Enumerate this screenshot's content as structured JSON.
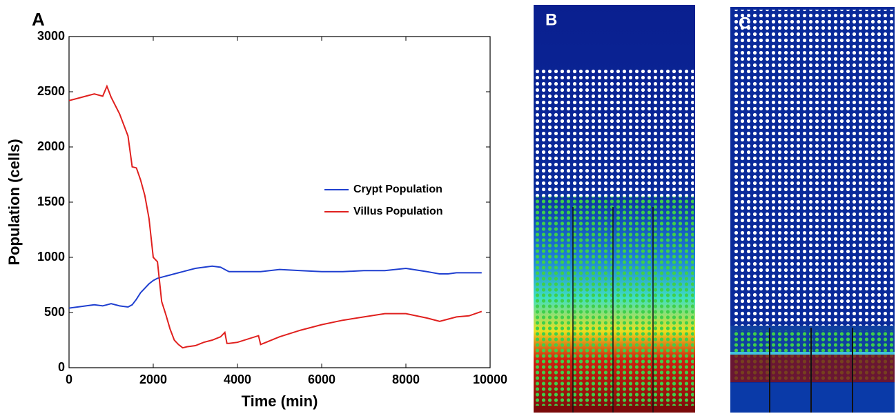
{
  "panel_labels": [
    "A",
    "B",
    "C"
  ],
  "chart_data": {
    "type": "line",
    "xlabel": "Time (min)",
    "ylabel": "Population (cells)",
    "x": [
      0,
      200,
      400,
      600,
      800,
      900,
      1000,
      1200,
      1400,
      1500,
      1600,
      1700,
      1800,
      1900,
      2000,
      2100,
      2200,
      2300,
      2400,
      2500,
      2600,
      2700,
      2800,
      3000,
      3200,
      3400,
      3600,
      3700,
      3750,
      3800,
      4000,
      4500,
      4550,
      5000,
      5500,
      6000,
      6500,
      7000,
      7500,
      8000,
      8500,
      8800,
      9000,
      9200,
      9500,
      9800
    ],
    "series": [
      {
        "name": "Crypt Population",
        "color": "#1f3fd0",
        "values": [
          540,
          550,
          560,
          570,
          560,
          570,
          580,
          560,
          550,
          570,
          620,
          680,
          720,
          760,
          790,
          810,
          820,
          830,
          840,
          850,
          860,
          870,
          880,
          900,
          910,
          920,
          910,
          890,
          880,
          870,
          870,
          870,
          870,
          890,
          880,
          870,
          870,
          880,
          880,
          900,
          870,
          850,
          850,
          860,
          860,
          860
        ]
      },
      {
        "name": "Villus Population",
        "color": "#e0201e",
        "values": [
          2420,
          2440,
          2460,
          2480,
          2460,
          2550,
          2450,
          2300,
          2100,
          1820,
          1810,
          1700,
          1560,
          1350,
          1000,
          960,
          600,
          480,
          350,
          250,
          210,
          180,
          190,
          200,
          230,
          250,
          280,
          320,
          220,
          220,
          230,
          290,
          210,
          280,
          340,
          390,
          430,
          460,
          490,
          490,
          450,
          420,
          440,
          460,
          470,
          510
        ]
      }
    ],
    "xlim": [
      0,
      10000
    ],
    "xticks": [
      0,
      2000,
      4000,
      6000,
      8000,
      10000
    ],
    "ylim": [
      0,
      3000
    ],
    "yticks": [
      0,
      500,
      1000,
      1500,
      2000,
      2500,
      3000
    ],
    "grid": false,
    "legend": "right"
  }
}
